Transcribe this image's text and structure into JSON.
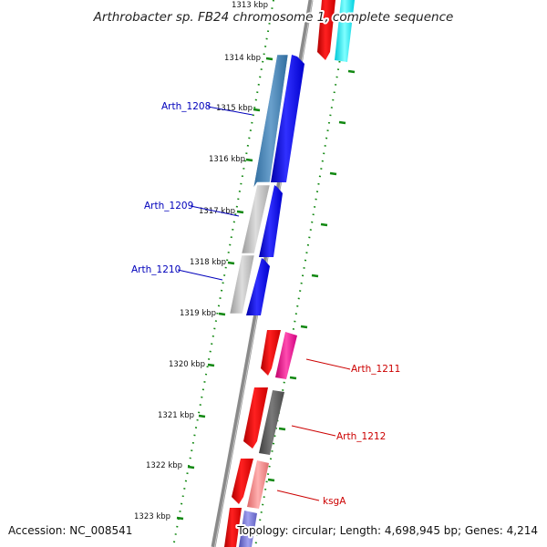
{
  "title": "Arthrobacter sp. FB24 chromosome 1, complete sequence",
  "footer": {
    "accession": "Accession: NC_008541",
    "summary": "Topology: circular; Length: 4,698,945 bp; Genes: 4,214"
  },
  "scale": {
    "top_partial": "1313 kbp",
    "labels": [
      "1314 kbp",
      "1315 kbp",
      "1316 kbp",
      "1317 kbp",
      "1318 kbp",
      "1319 kbp",
      "1320 kbp",
      "1321 kbp",
      "1322 kbp",
      "1323 kbp"
    ]
  },
  "genes": [
    {
      "name": "Arth_1208",
      "strand": "reverse"
    },
    {
      "name": "Arth_1209",
      "strand": "reverse"
    },
    {
      "name": "Arth_1210",
      "strand": "reverse"
    },
    {
      "name": "Arth_1211",
      "strand": "forward"
    },
    {
      "name": "Arth_1212",
      "strand": "forward"
    },
    {
      "name": "ksgA",
      "strand": "forward"
    }
  ],
  "colors": {
    "forward_label": "#cc0000",
    "reverse_label": "#0000bb",
    "tick": "#118811",
    "backbone": "#888888"
  }
}
